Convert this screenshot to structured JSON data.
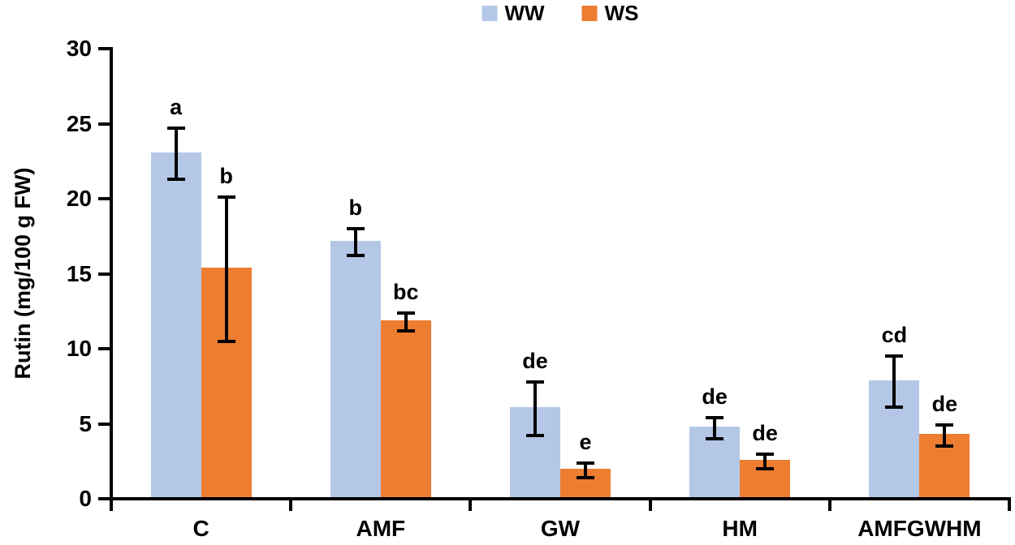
{
  "chart_data": {
    "type": "bar",
    "title": "",
    "ylabel": "Rutin (mg/100 g FW)",
    "xlabel": "",
    "ylim": [
      0,
      30
    ],
    "yticks": [
      0,
      5,
      10,
      15,
      20,
      25,
      30
    ],
    "grid": false,
    "legend_position": "top-center",
    "categories": [
      "C",
      "AMF",
      "GW",
      "HM",
      "AMFGWHM"
    ],
    "series": [
      {
        "name": "WW",
        "color": "#b4c7e7",
        "values": [
          23.0,
          17.1,
          6.0,
          4.7,
          7.8
        ],
        "errors": [
          1.7,
          0.9,
          1.8,
          0.7,
          1.7
        ],
        "letters": [
          "a",
          "b",
          "de",
          "de",
          "cd"
        ]
      },
      {
        "name": "WS",
        "color": "#ed7d31",
        "values": [
          15.3,
          11.8,
          1.9,
          2.5,
          4.2
        ],
        "errors": [
          4.8,
          0.6,
          0.5,
          0.5,
          0.7
        ],
        "letters": [
          "b",
          "bc",
          "e",
          "de",
          "de"
        ]
      }
    ],
    "error_bar_color": "#000000",
    "axis_color": "#000000"
  }
}
